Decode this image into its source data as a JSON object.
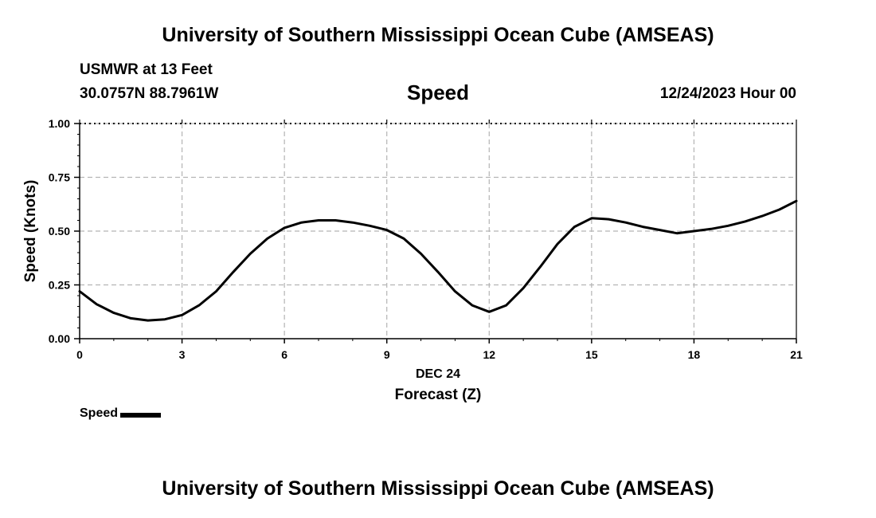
{
  "header": {
    "title": "University of Southern Mississippi Ocean Cube (AMSEAS)",
    "station": "USMWR at 13 Feet",
    "coords": "30.0757N  88.7961W",
    "variable": "Speed",
    "date": "12/24/2023 Hour 00"
  },
  "footer": {
    "title": "University of Southern Mississippi Ocean Cube (AMSEAS)"
  },
  "legend": {
    "label": "Speed"
  },
  "chart_data": {
    "type": "line",
    "title": "Speed",
    "xlabel": "Forecast (Z)",
    "xsublabel": "DEC 24",
    "ylabel": "Speed (Knots)",
    "xlim": [
      0,
      21
    ],
    "ylim": [
      0,
      1
    ],
    "xticks": [
      0,
      3,
      6,
      9,
      12,
      15,
      18,
      21
    ],
    "xtick_labels": [
      "0",
      "3",
      "6",
      "9",
      "12",
      "15",
      "18",
      "21"
    ],
    "yticks": [
      0,
      0.25,
      0.5,
      0.75,
      1.0
    ],
    "ytick_labels": [
      "0.00",
      "0.25",
      "0.50",
      "0.75",
      "1.00"
    ],
    "grid": true,
    "series": [
      {
        "name": "Speed",
        "color": "#000000",
        "x": [
          0,
          0.5,
          1,
          1.5,
          2,
          2.5,
          3,
          3.5,
          4,
          4.5,
          5,
          5.5,
          6,
          6.5,
          7,
          7.5,
          8,
          8.5,
          9,
          9.5,
          10,
          10.5,
          11,
          11.5,
          12,
          12.5,
          13,
          13.5,
          14,
          14.5,
          15,
          15.5,
          16,
          16.5,
          17,
          17.5,
          18,
          18.5,
          19,
          19.5,
          20,
          20.5,
          21
        ],
        "y": [
          0.22,
          0.16,
          0.12,
          0.095,
          0.085,
          0.09,
          0.11,
          0.155,
          0.22,
          0.31,
          0.395,
          0.465,
          0.515,
          0.54,
          0.55,
          0.55,
          0.54,
          0.525,
          0.505,
          0.465,
          0.395,
          0.31,
          0.22,
          0.155,
          0.125,
          0.155,
          0.235,
          0.335,
          0.44,
          0.52,
          0.56,
          0.555,
          0.54,
          0.52,
          0.505,
          0.49,
          0.5,
          0.51,
          0.525,
          0.545,
          0.57,
          0.6,
          0.64
        ]
      }
    ]
  }
}
